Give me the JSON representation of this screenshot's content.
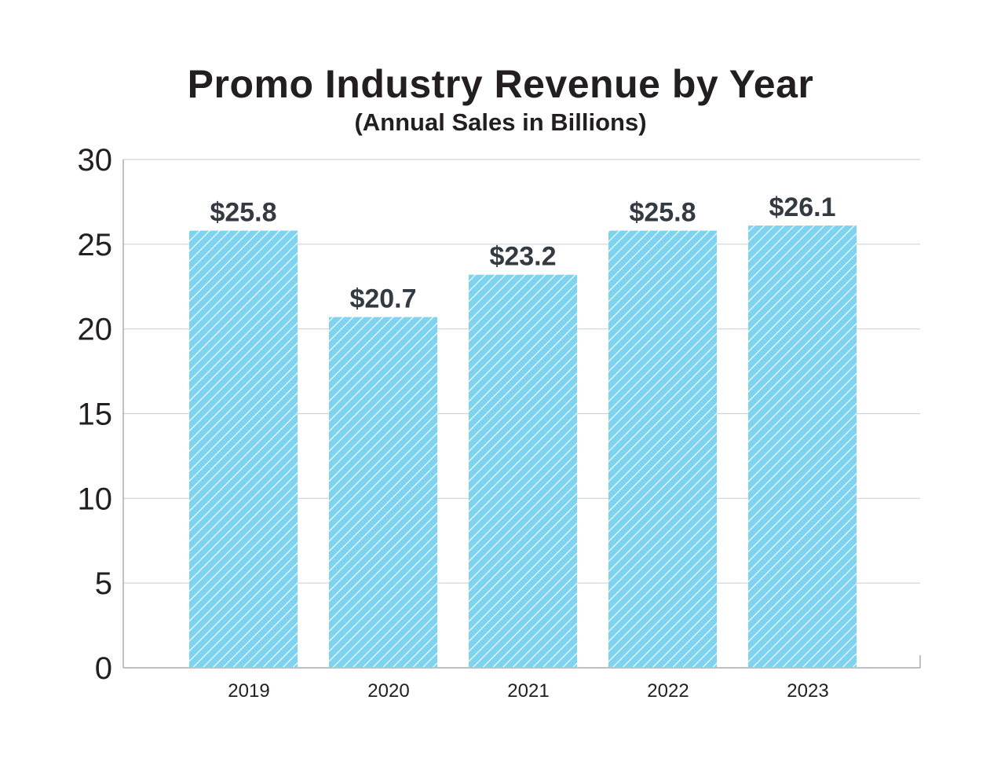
{
  "chart_data": {
    "type": "bar",
    "title": "Promo Industry Revenue by Year",
    "subtitle": "(Annual Sales in Billions)",
    "xlabel": "",
    "ylabel": "",
    "categories": [
      "2019",
      "2020",
      "2021",
      "2022",
      "2023"
    ],
    "values": [
      25.8,
      20.7,
      23.2,
      25.8,
      26.1
    ],
    "data_labels": [
      "$25.8",
      "$20.7",
      "$23.2",
      "$25.8",
      "$26.1"
    ],
    "ylim": [
      0,
      30
    ],
    "yticks": [
      0,
      5,
      10,
      15,
      20,
      25,
      30
    ],
    "grid": true,
    "legend": "none",
    "bar_color": "#7dd3f0",
    "bar_hatch_color": "#ffffff",
    "grid_color": "#cfd2d6"
  }
}
